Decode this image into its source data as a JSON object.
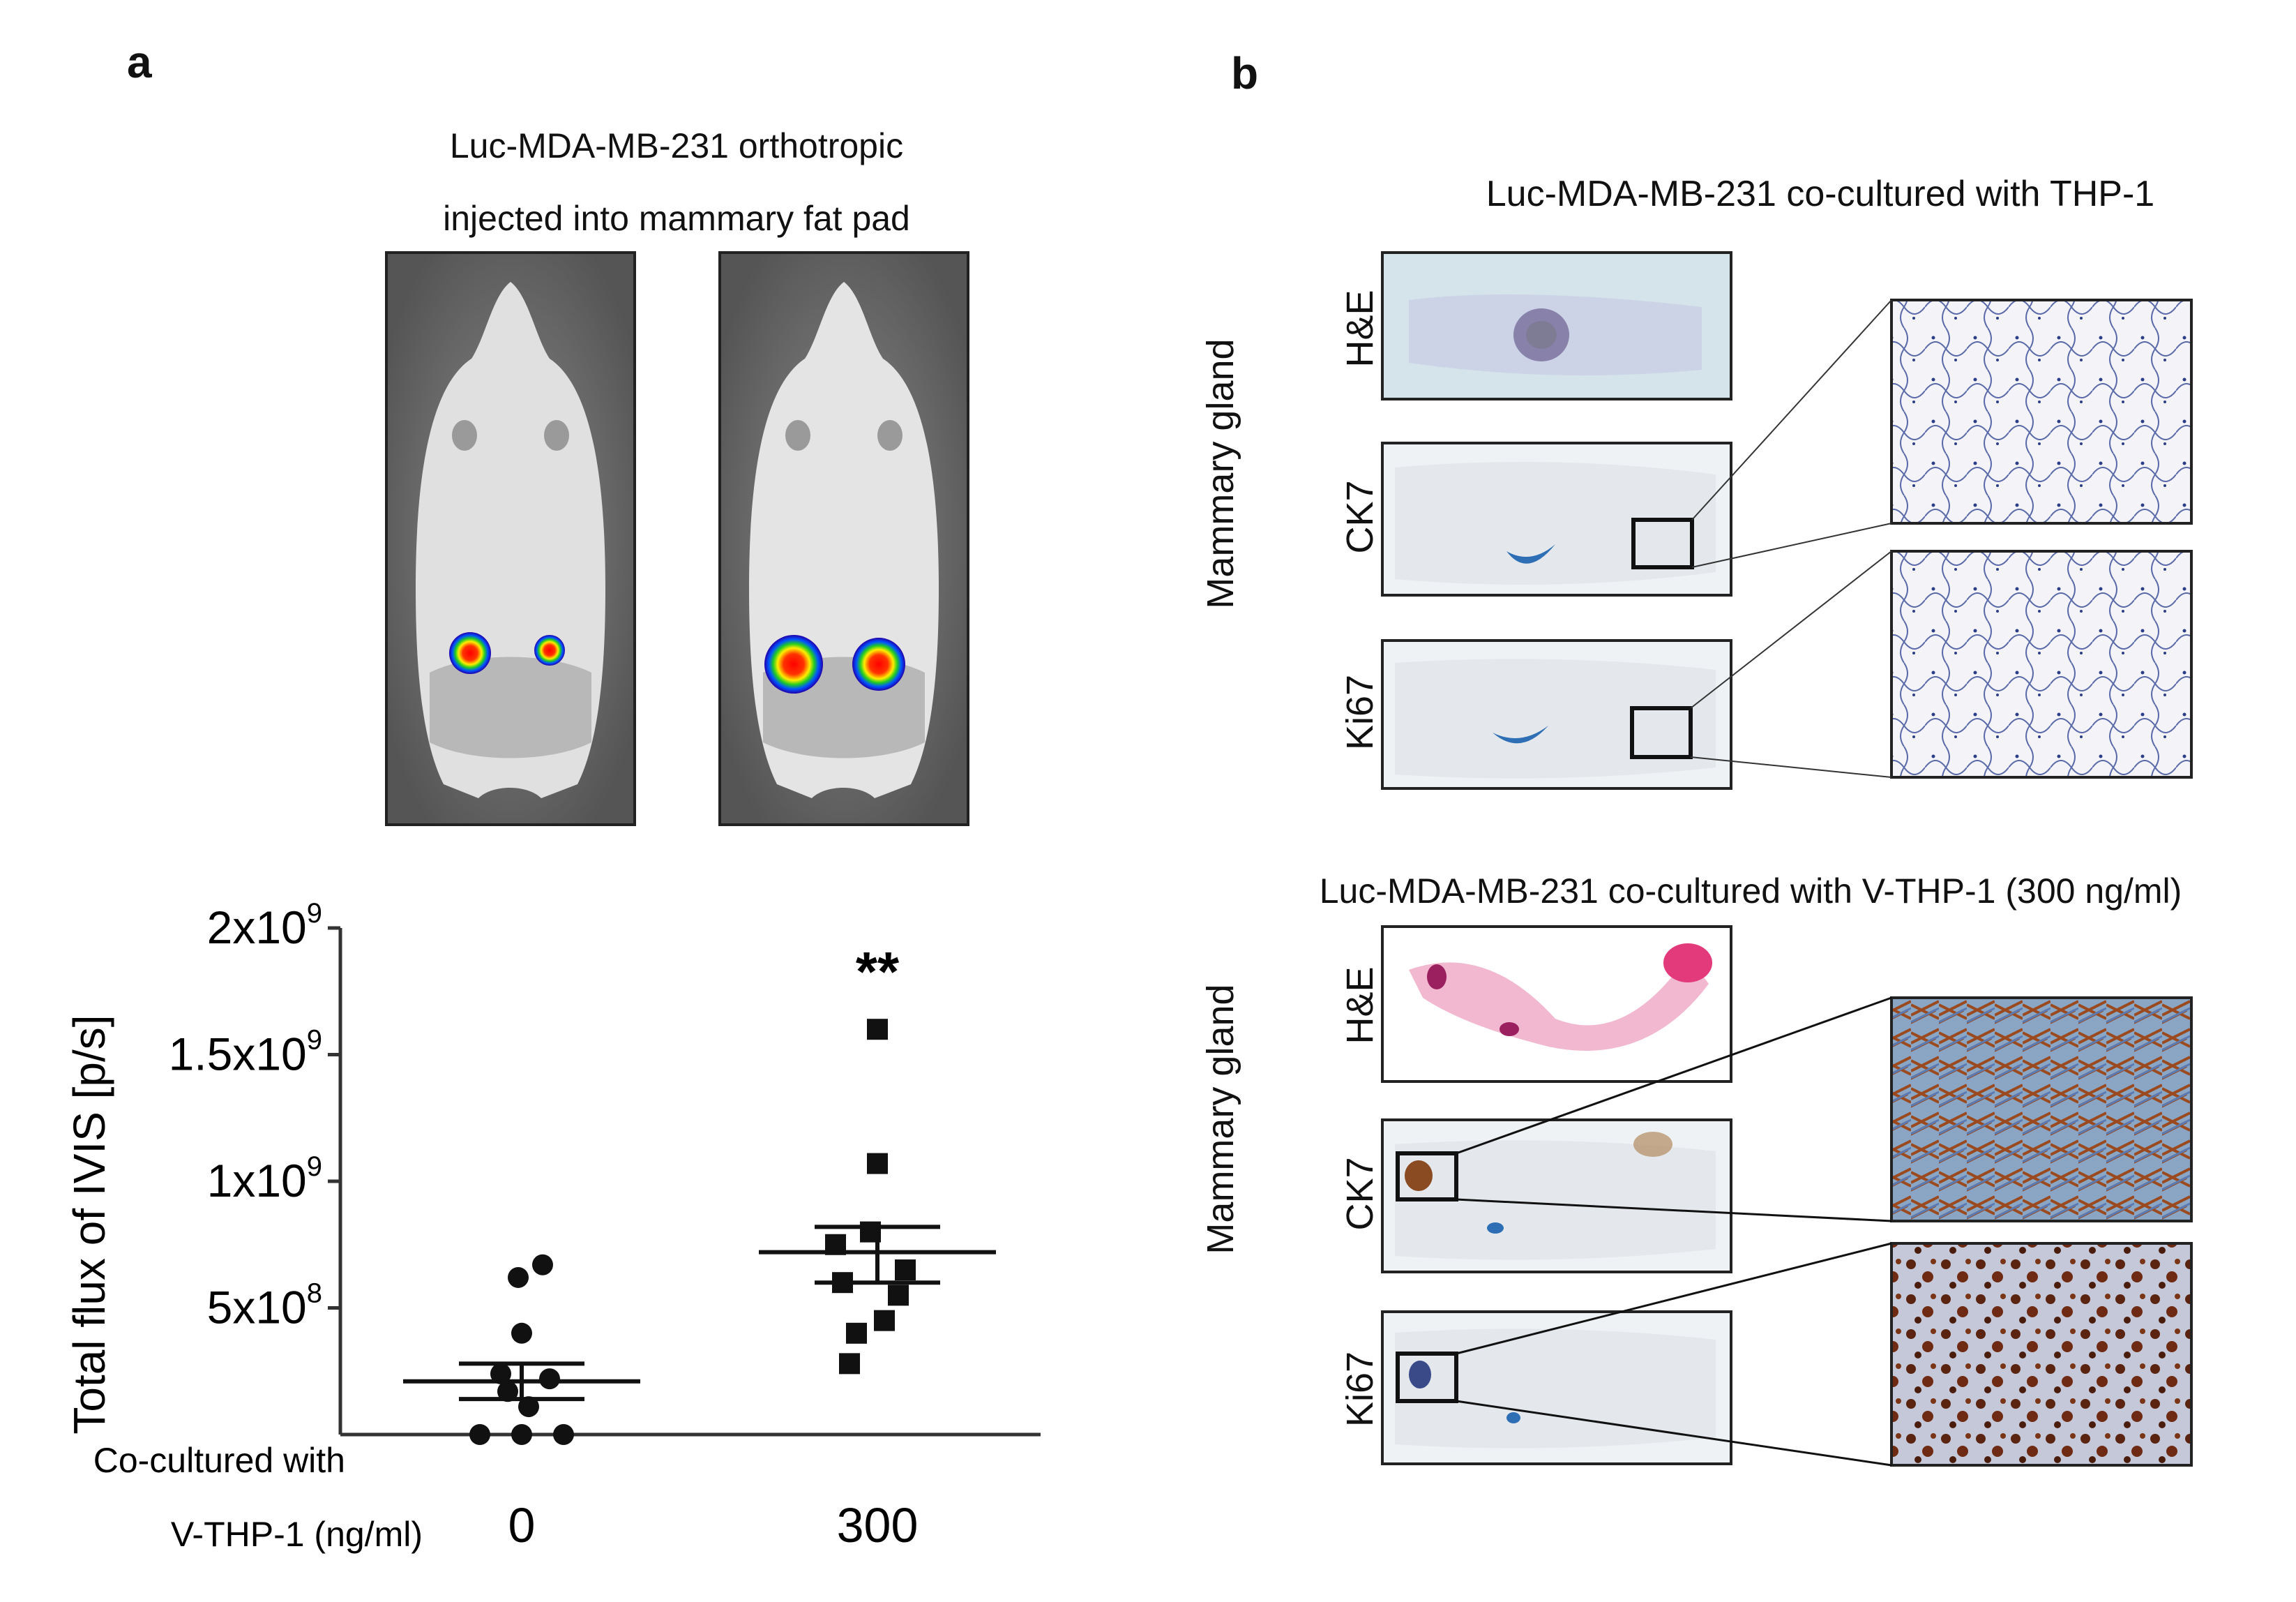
{
  "panel_a": {
    "letter": "a",
    "title_line1": "Luc-MDA-MB-231 orthotropic",
    "title_line2": "injected into mammary fat pad"
  },
  "panel_b": {
    "letter": "b",
    "top_title": "Luc-MDA-MB-231 co-cultured with THP-1",
    "bottom_title": "Luc-MDA-MB-231 co-cultured with V-THP-1 (300 ng/ml)",
    "tissue_label": "Mammary gland",
    "row_labels": [
      "H&E",
      "CK7",
      "Ki67"
    ]
  },
  "chart_data": {
    "type": "scatter",
    "ylabel": "Total flux of IVIS [p/s]",
    "xlabel_line1": "Co-cultured with",
    "xlabel_line2": "V-THP-1 (ng/ml)",
    "ylim": [
      0,
      2000000000
    ],
    "yticks": [
      {
        "value": 500000000,
        "base": "5x10",
        "exp": "8"
      },
      {
        "value": 1000000000,
        "base": "1x10",
        "exp": "9"
      },
      {
        "value": 1500000000,
        "base": "1.5x10",
        "exp": "9"
      },
      {
        "value": 2000000000,
        "base": "2x10",
        "exp": "9"
      }
    ],
    "series": [
      {
        "name": "0",
        "marker": "circle",
        "values": [
          670000000,
          620000000,
          400000000,
          240000000,
          220000000,
          170000000,
          110000000,
          0,
          0,
          0
        ],
        "mean": 210000000,
        "sem_high": 280000000,
        "sem_low": 140000000
      },
      {
        "name": "300",
        "marker": "square",
        "values": [
          1600000000,
          1070000000,
          800000000,
          750000000,
          650000000,
          600000000,
          550000000,
          450000000,
          400000000,
          280000000
        ],
        "mean": 720000000,
        "sem_high": 820000000,
        "sem_low": 600000000
      }
    ],
    "significance": "**"
  }
}
